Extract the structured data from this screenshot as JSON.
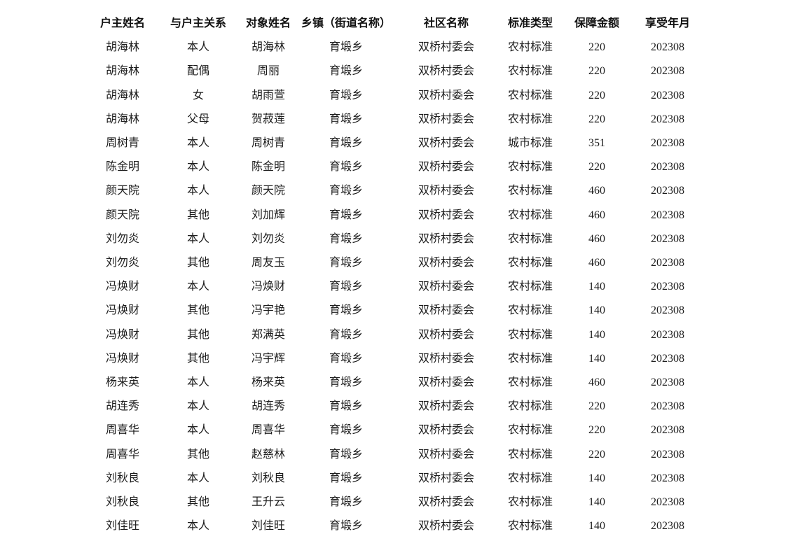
{
  "document": {
    "background": "#ffffff",
    "text_color": "#1a1a1a"
  },
  "table": {
    "headers": [
      "户主姓名",
      "与户主关系",
      "对象姓名",
      "乡镇（街道名称）",
      "社区名称",
      "标准类型",
      "保障金额",
      "享受年月"
    ],
    "rows": [
      [
        "胡海林",
        "本人",
        "胡海林",
        "育塅乡",
        "双桥村委会",
        "农村标准",
        "220",
        "202308"
      ],
      [
        "胡海林",
        "配偶",
        "周丽",
        "育塅乡",
        "双桥村委会",
        "农村标准",
        "220",
        "202308"
      ],
      [
        "胡海林",
        "女",
        "胡雨萱",
        "育塅乡",
        "双桥村委会",
        "农村标准",
        "220",
        "202308"
      ],
      [
        "胡海林",
        "父母",
        "贺菽莲",
        "育塅乡",
        "双桥村委会",
        "农村标准",
        "220",
        "202308"
      ],
      [
        "周树青",
        "本人",
        "周树青",
        "育塅乡",
        "双桥村委会",
        "城市标准",
        "351",
        "202308"
      ],
      [
        "陈金明",
        "本人",
        "陈金明",
        "育塅乡",
        "双桥村委会",
        "农村标准",
        "220",
        "202308"
      ],
      [
        "颜天院",
        "本人",
        "颜天院",
        "育塅乡",
        "双桥村委会",
        "农村标准",
        "460",
        "202308"
      ],
      [
        "颜天院",
        "其他",
        "刘加辉",
        "育塅乡",
        "双桥村委会",
        "农村标准",
        "460",
        "202308"
      ],
      [
        "刘勿炎",
        "本人",
        "刘勿炎",
        "育塅乡",
        "双桥村委会",
        "农村标准",
        "460",
        "202308"
      ],
      [
        "刘勿炎",
        "其他",
        "周友玉",
        "育塅乡",
        "双桥村委会",
        "农村标准",
        "460",
        "202308"
      ],
      [
        "冯焕财",
        "本人",
        "冯焕财",
        "育塅乡",
        "双桥村委会",
        "农村标准",
        "140",
        "202308"
      ],
      [
        "冯焕财",
        "其他",
        "冯宇艳",
        "育塅乡",
        "双桥村委会",
        "农村标准",
        "140",
        "202308"
      ],
      [
        "冯焕财",
        "其他",
        "郑满英",
        "育塅乡",
        "双桥村委会",
        "农村标准",
        "140",
        "202308"
      ],
      [
        "冯焕财",
        "其他",
        "冯宇辉",
        "育塅乡",
        "双桥村委会",
        "农村标准",
        "140",
        "202308"
      ],
      [
        "杨来英",
        "本人",
        "杨来英",
        "育塅乡",
        "双桥村委会",
        "农村标准",
        "460",
        "202308"
      ],
      [
        "胡连秀",
        "本人",
        "胡连秀",
        "育塅乡",
        "双桥村委会",
        "农村标准",
        "220",
        "202308"
      ],
      [
        "周喜华",
        "本人",
        "周喜华",
        "育塅乡",
        "双桥村委会",
        "农村标准",
        "220",
        "202308"
      ],
      [
        "周喜华",
        "其他",
        "赵慈林",
        "育塅乡",
        "双桥村委会",
        "农村标准",
        "220",
        "202308"
      ],
      [
        "刘秋良",
        "本人",
        "刘秋良",
        "育塅乡",
        "双桥村委会",
        "农村标准",
        "140",
        "202308"
      ],
      [
        "刘秋良",
        "其他",
        "王升云",
        "育塅乡",
        "双桥村委会",
        "农村标准",
        "140",
        "202308"
      ],
      [
        "刘佳旺",
        "本人",
        "刘佳旺",
        "育塅乡",
        "双桥村委会",
        "农村标准",
        "140",
        "202308"
      ]
    ]
  }
}
